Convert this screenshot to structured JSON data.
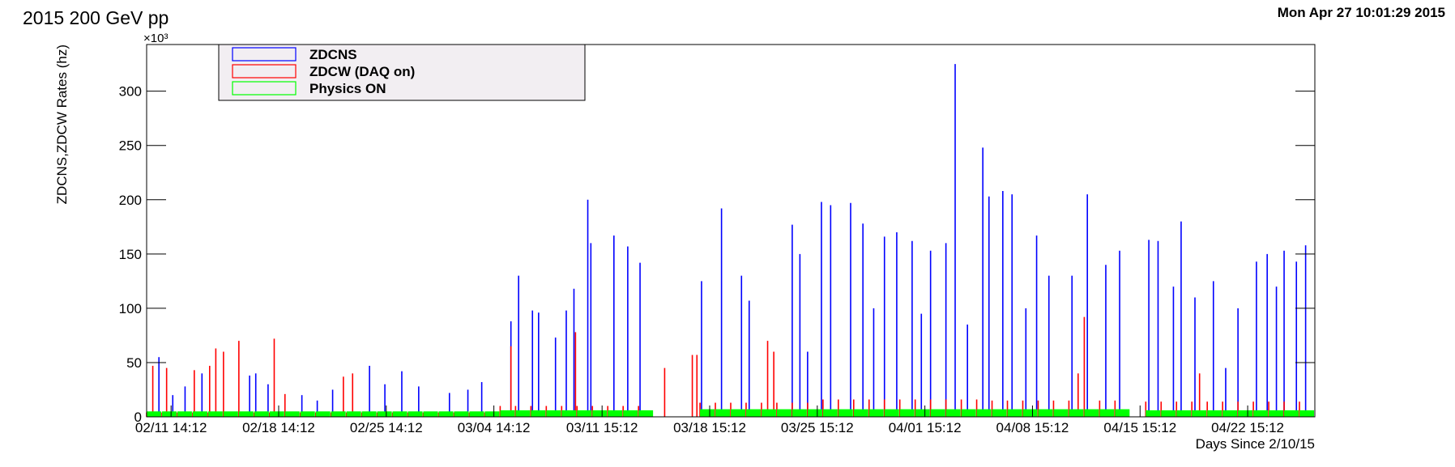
{
  "chart_data": {
    "type": "spike",
    "title": "2015 200 GeV pp",
    "timestamp": "Mon Apr 27 10:01:29 2015",
    "y_label": "ZDCNS,ZDCW Rates (hz)",
    "y_multiplier": "×10³",
    "x_label": "Days Since 2/10/15",
    "xlim": [
      0,
      76
    ],
    "ylim": [
      0,
      343
    ],
    "xticks": [
      {
        "value": 1.59,
        "label": "02/11 14:12"
      },
      {
        "value": 8.59,
        "label": "02/18 14:12"
      },
      {
        "value": 15.59,
        "label": "02/25 14:12"
      },
      {
        "value": 22.59,
        "label": "03/04 14:12"
      },
      {
        "value": 29.63,
        "label": "03/11 15:12"
      },
      {
        "value": 36.63,
        "label": "03/18 15:12"
      },
      {
        "value": 43.63,
        "label": "03/25 15:12"
      },
      {
        "value": 50.63,
        "label": "04/01 15:12"
      },
      {
        "value": 57.63,
        "label": "04/08 15:12"
      },
      {
        "value": 64.63,
        "label": "04/15 15:12"
      },
      {
        "value": 71.63,
        "label": "04/22 15:12"
      }
    ],
    "yticks": [
      0,
      50,
      100,
      150,
      200,
      250,
      300
    ],
    "legend_position": "top-left",
    "series": [
      {
        "name": "ZDCNS",
        "color": "#0000ff",
        "style": "line",
        "x": [
          0.8,
          1.7,
          2.5,
          3.6,
          6.7,
          7.1,
          7.9,
          10.1,
          11.1,
          12.1,
          14.5,
          15.5,
          16.6,
          17.7,
          19.7,
          20.9,
          21.8,
          23.7,
          24.2,
          25.1,
          25.5,
          26.6,
          27.3,
          27.8,
          28.7,
          28.9,
          30.4,
          31.3,
          32.1,
          36.1,
          37.4,
          38.7,
          39.2,
          42.0,
          42.5,
          43.0,
          43.9,
          44.5,
          45.8,
          46.6,
          47.3,
          48.0,
          48.8,
          49.8,
          50.4,
          51.0,
          52.0,
          52.6,
          53.4,
          54.4,
          54.8,
          55.7,
          56.3,
          57.2,
          57.9,
          58.7,
          60.2,
          61.2,
          62.4,
          63.3,
          65.2,
          65.8,
          66.8,
          67.3,
          68.2,
          69.4,
          70.2,
          71.0,
          72.2,
          72.9,
          73.5,
          74.0,
          74.8,
          75.4
        ],
        "values": [
          55,
          20,
          28,
          40,
          38,
          40,
          30,
          20,
          15,
          25,
          47,
          30,
          42,
          28,
          22,
          25,
          32,
          88,
          130,
          98,
          96,
          73,
          98,
          118,
          200,
          160,
          167,
          157,
          142,
          125,
          192,
          130,
          107,
          177,
          150,
          60,
          198,
          195,
          197,
          178,
          100,
          166,
          170,
          162,
          95,
          153,
          160,
          325,
          85,
          248,
          203,
          208,
          205,
          100,
          167,
          130,
          130,
          205,
          140,
          153,
          163,
          162,
          120,
          180,
          110,
          125,
          45,
          100,
          143,
          150,
          120,
          153,
          143,
          158
        ]
      },
      {
        "name": "ZDCW (DAQ on)",
        "color": "#ff0000",
        "style": "line",
        "x": [
          0,
          0.4,
          1,
          1.3,
          2,
          3,
          3.1,
          4,
          4.1,
          4.5,
          5,
          6,
          7,
          8,
          8.3,
          9,
          10,
          11,
          12,
          12.8,
          13,
          13.4,
          14,
          15,
          16,
          17,
          18,
          19,
          20,
          21,
          22,
          23,
          23.7,
          24,
          25,
          26,
          27,
          27.9,
          28,
          29,
          30,
          31,
          32,
          33.7,
          35.5,
          35.8,
          36,
          37,
          38,
          39,
          40,
          40.4,
          40.8,
          41,
          42,
          43,
          44,
          45,
          46,
          47,
          48,
          49,
          50,
          51,
          52,
          53,
          54,
          55,
          56,
          57,
          58,
          59,
          60,
          60.6,
          61,
          62,
          63,
          65,
          66,
          67,
          68,
          68.5,
          69,
          70,
          71,
          72,
          73,
          74,
          75
        ],
        "values": [
          4,
          47,
          4,
          45,
          4,
          4,
          43,
          4,
          47,
          63,
          60,
          70,
          4,
          4,
          72,
          21,
          4,
          4,
          4,
          37,
          4,
          40,
          4,
          4,
          4,
          4,
          4,
          4,
          4,
          4,
          4,
          10,
          65,
          10,
          10,
          10,
          10,
          78,
          10,
          10,
          10,
          10,
          10,
          45,
          57,
          57,
          13,
          13,
          13,
          13,
          13,
          70,
          60,
          13,
          13,
          13,
          16,
          16,
          16,
          16,
          16,
          16,
          16,
          16,
          16,
          16,
          16,
          15,
          15,
          15,
          15,
          15,
          15,
          40,
          92,
          15,
          15,
          14,
          14,
          14,
          14,
          40,
          14,
          14,
          14,
          14,
          14,
          14,
          14
        ]
      },
      {
        "name": "Physics ON",
        "color": "#00ff00",
        "style": "fill",
        "x": [
          0,
          1,
          2,
          3,
          4,
          5,
          6,
          7,
          8,
          9,
          10,
          11,
          12,
          13,
          14,
          15,
          16,
          17,
          18,
          19,
          20,
          21,
          22,
          23,
          24,
          25,
          26,
          27,
          28,
          29,
          30,
          31,
          32,
          33,
          34,
          35,
          36,
          37,
          38,
          39,
          40,
          41,
          42,
          43,
          44,
          45,
          46,
          47,
          48,
          49,
          50,
          51,
          52,
          53,
          54,
          55,
          56,
          57,
          58,
          59,
          60,
          61,
          62,
          63,
          64,
          65,
          66,
          67,
          68,
          69,
          70,
          71,
          72,
          73,
          74,
          75
        ],
        "values": [
          5,
          5,
          5,
          5,
          5,
          5,
          5,
          5,
          5,
          5,
          5,
          5,
          5,
          5,
          5,
          5,
          5,
          5,
          5,
          5,
          5,
          5,
          5,
          6,
          6,
          6,
          6,
          6,
          6,
          6,
          6,
          6,
          6,
          null,
          null,
          null,
          7,
          7,
          7,
          7,
          7,
          7,
          7,
          7,
          7,
          7,
          7,
          7,
          7,
          7,
          7,
          7,
          7,
          7,
          7,
          7,
          7,
          7,
          7,
          7,
          7,
          7,
          7,
          7,
          null,
          6,
          6,
          6,
          6,
          6,
          6,
          6,
          6,
          6,
          6,
          6
        ]
      }
    ]
  }
}
